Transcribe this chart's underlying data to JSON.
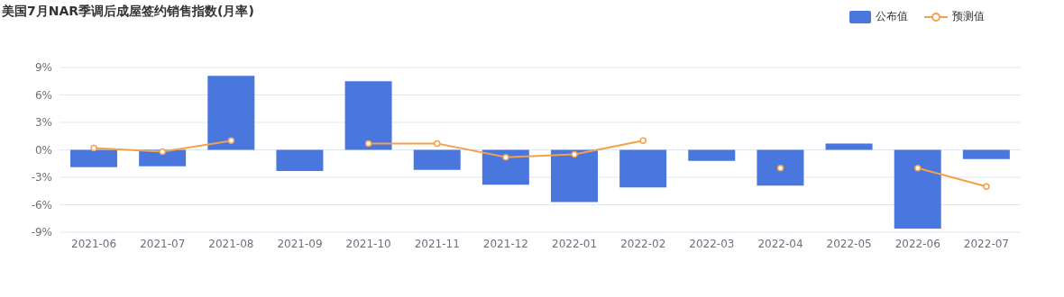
{
  "chart_data": {
    "type": "bar",
    "title": "美国7月NAR季调后成屋签约销售指数(月率)",
    "categories": [
      "2021-06",
      "2021-07",
      "2021-08",
      "2021-09",
      "2021-10",
      "2021-11",
      "2021-12",
      "2022-01",
      "2022-02",
      "2022-03",
      "2022-04",
      "2022-05",
      "2022-06",
      "2022-07"
    ],
    "series": [
      {
        "name": "公布值",
        "color": "#4a77de",
        "values": [
          -1.9,
          -1.8,
          8.1,
          -2.3,
          7.5,
          -2.2,
          -3.8,
          -5.7,
          -4.1,
          -1.2,
          -3.9,
          0.7,
          -8.6,
          -1.0
        ]
      },
      {
        "name": "预测值",
        "type": "line",
        "color": "#f5a04a",
        "values": [
          0.2,
          -0.2,
          1.0,
          null,
          0.7,
          0.7,
          -0.8,
          -0.5,
          1.0,
          null,
          -2.0,
          null,
          -2.0,
          -4.0
        ]
      }
    ],
    "ylim": [
      -9,
      9
    ],
    "yticks": [
      {
        "value": -9,
        "label": "-9%"
      },
      {
        "value": -6,
        "label": "-6%"
      },
      {
        "value": -3,
        "label": "-3%"
      },
      {
        "value": 0,
        "label": "0%"
      },
      {
        "value": 3,
        "label": "3%"
      },
      {
        "value": 6,
        "label": "6%"
      },
      {
        "value": 9,
        "label": "9%"
      }
    ],
    "grid": "y",
    "legend": "top right",
    "marker": "circle",
    "line_style": "solid"
  }
}
